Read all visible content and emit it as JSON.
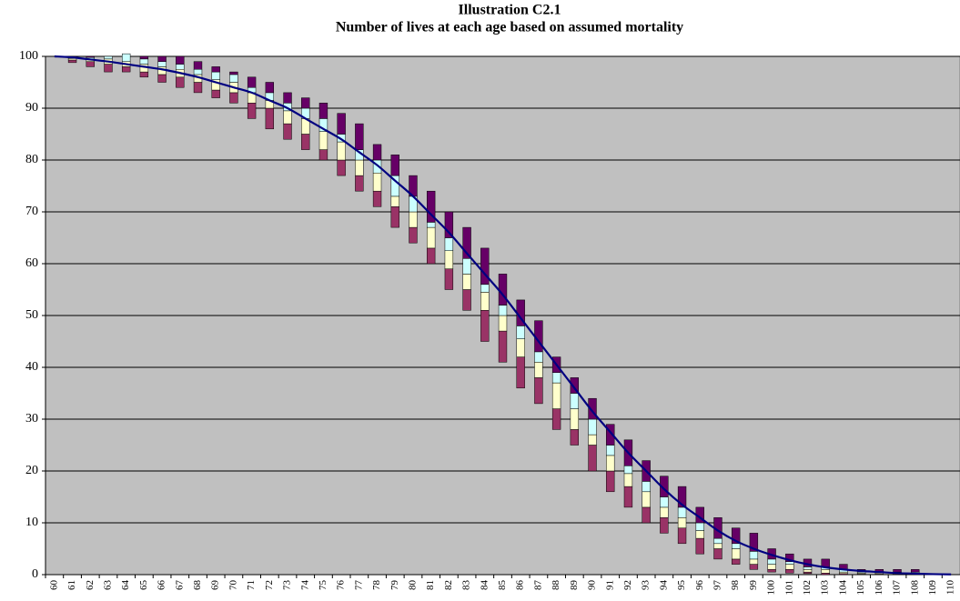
{
  "chart_data": {
    "type": "stacked_bar_line",
    "title": "Illustration C2.1",
    "subtitle": "Number of lives at each age based on assumed mortality",
    "categories": [
      "60",
      "61",
      "62",
      "63",
      "64",
      "65",
      "66",
      "67",
      "68",
      "69",
      "70",
      "71",
      "72",
      "73",
      "74",
      "75",
      "76",
      "77",
      "78",
      "79",
      "80",
      "81",
      "82",
      "83",
      "84",
      "85",
      "86",
      "87",
      "88",
      "89",
      "90",
      "91",
      "92",
      "93",
      "94",
      "95",
      "96",
      "97",
      "98",
      "99",
      "100",
      "101",
      "102",
      "103",
      "104",
      "105",
      "106",
      "107",
      "108",
      "109",
      "110"
    ],
    "series": [
      {
        "color": "none",
        "values": [
          100,
          98.8,
          98,
          97,
          97,
          96,
          95,
          94,
          93,
          92,
          91,
          88,
          86,
          84,
          82,
          80,
          77,
          74,
          71,
          67,
          64,
          60,
          55,
          51,
          45,
          41,
          36,
          33,
          28,
          25,
          20,
          16,
          13,
          10,
          8,
          6,
          4,
          3,
          2,
          1,
          0.5,
          0.3,
          0.2,
          0,
          0,
          0,
          0,
          0,
          0,
          0,
          0
        ]
      },
      {
        "color": "#993366",
        "values": [
          0,
          0.5,
          1,
          1.5,
          1,
          1,
          1.5,
          2,
          2,
          1.5,
          2,
          3,
          4,
          3,
          3,
          2,
          3,
          3,
          3,
          4,
          3,
          3,
          4,
          4,
          6,
          6,
          6,
          5,
          4,
          3,
          5,
          4,
          4,
          3,
          3,
          3,
          3,
          2,
          1,
          1,
          0.5,
          0.7,
          0.3,
          0.3,
          0.2,
          0.1,
          0.1,
          0.1,
          0.1,
          0,
          0
        ]
      },
      {
        "color": "#ffffcc",
        "values": [
          0,
          0.3,
          0.5,
          1,
          1,
          1.5,
          1.5,
          1.5,
          1.5,
          2,
          2,
          2,
          1.5,
          2.5,
          3,
          3.5,
          3.5,
          3,
          3.5,
          2,
          3,
          4,
          3.5,
          3,
          3.5,
          3,
          3.5,
          3,
          5,
          4,
          2,
          3,
          2.5,
          3,
          2,
          2,
          1.5,
          1,
          2,
          1,
          1,
          1,
          0.5,
          0.7,
          0.3,
          0.2,
          0.2,
          0.2,
          0.2,
          0,
          0
        ]
      },
      {
        "color": "#ccffff",
        "values": [
          0,
          0.2,
          0.3,
          0.5,
          1.5,
          1,
          1,
          1,
          1,
          1.5,
          1.5,
          1,
          1.5,
          1.5,
          2,
          2.5,
          1.5,
          2,
          2.5,
          4,
          3,
          1,
          2.5,
          3,
          1.5,
          2,
          2.5,
          2,
          2,
          3,
          3,
          2,
          1.5,
          2,
          2,
          2,
          1.5,
          1,
          1,
          1.5,
          1,
          0.5,
          0.5,
          0.5,
          0.5,
          0.2,
          0.2,
          0.2,
          0.2,
          0,
          0
        ]
      },
      {
        "color": "#660066",
        "values": [
          0,
          0.2,
          0.2,
          0,
          0,
          0.5,
          1,
          1.5,
          1.5,
          1,
          0.5,
          2,
          2,
          2,
          2,
          3,
          4,
          5,
          3,
          4,
          4,
          6,
          5,
          6,
          7,
          6,
          5,
          6,
          3,
          3,
          4,
          4,
          5,
          4,
          4,
          4,
          3,
          4,
          3,
          3.5,
          2,
          1.5,
          1.5,
          1.5,
          1,
          0.5,
          0.5,
          0.5,
          0.5,
          0,
          0
        ]
      }
    ],
    "line": {
      "color": "#000080",
      "values": [
        100,
        99.8,
        99.4,
        99,
        98.5,
        98,
        97.5,
        96.8,
        96,
        95,
        94,
        93,
        91.5,
        90,
        88,
        86,
        84,
        81.5,
        79,
        76,
        73,
        69.5,
        66,
        62,
        58,
        54,
        49.5,
        45,
        40.5,
        36,
        31.5,
        27.5,
        23.5,
        20,
        16.5,
        13.5,
        11,
        8.5,
        6.5,
        5,
        3.8,
        2.8,
        2,
        1.4,
        1,
        0.7,
        0.5,
        0.3,
        0.2,
        0.1,
        0.05
      ]
    },
    "ylim": [
      0,
      100
    ],
    "yticks": [
      0,
      10,
      20,
      30,
      40,
      50,
      60,
      70,
      80,
      90,
      100
    ],
    "grid": true,
    "background": "#c0c0c0"
  }
}
